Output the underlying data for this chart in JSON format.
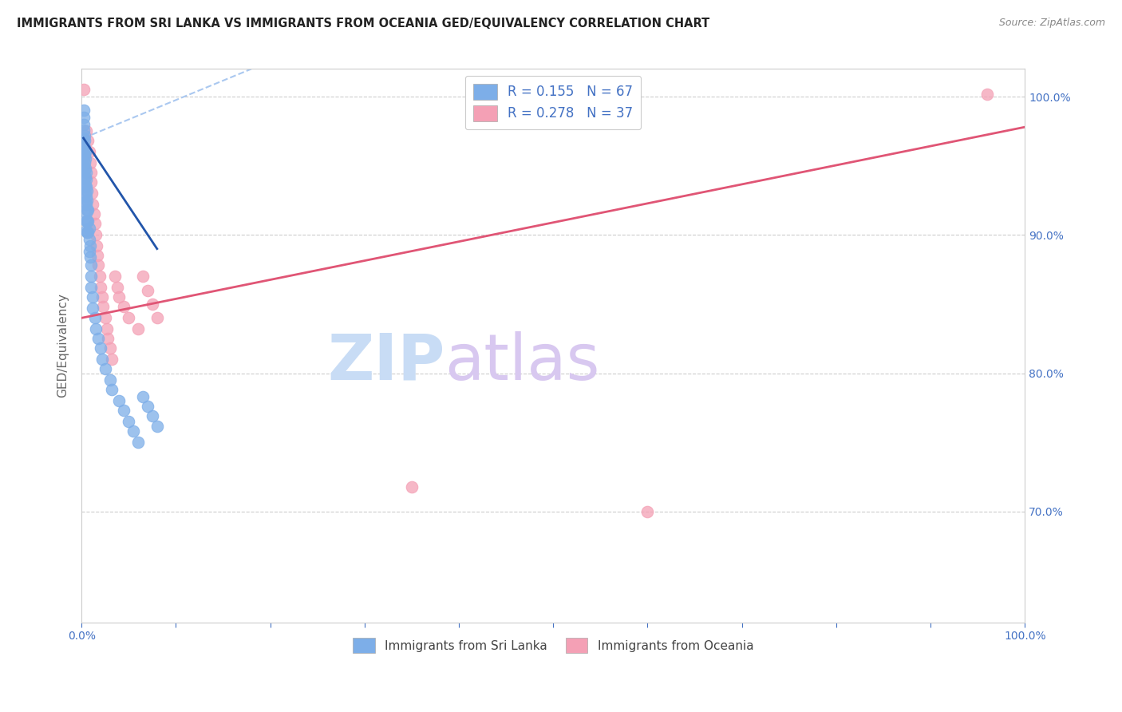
{
  "title": "IMMIGRANTS FROM SRI LANKA VS IMMIGRANTS FROM OCEANIA GED/EQUIVALENCY CORRELATION CHART",
  "source": "Source: ZipAtlas.com",
  "ylabel": "GED/Equivalency",
  "xmin": 0.0,
  "xmax": 1.0,
  "ymin": 0.62,
  "ymax": 1.02,
  "ytick_positions": [
    0.7,
    0.8,
    0.9,
    1.0
  ],
  "ytick_labels": [
    "70.0%",
    "80.0%",
    "90.0%",
    "100.0%"
  ],
  "legend_label1": "R = 0.155   N = 67",
  "legend_label2": "R = 0.278   N = 37",
  "color_blue": "#7daee8",
  "color_pink": "#f4a0b5",
  "trendline_blue_color": "#2255aa",
  "trendline_pink_color": "#e05575",
  "trendline_blue_dashed_color": "#aac8f0",
  "watermark_zip_color": "#c8dcf5",
  "watermark_atlas_color": "#d8c8f0",
  "right_tick_color": "#4472C4",
  "sri_lanka_x": [
    0.002,
    0.002,
    0.002,
    0.002,
    0.002,
    0.002,
    0.002,
    0.002,
    0.002,
    0.003,
    0.003,
    0.003,
    0.003,
    0.003,
    0.003,
    0.003,
    0.003,
    0.004,
    0.004,
    0.004,
    0.004,
    0.004,
    0.004,
    0.004,
    0.005,
    0.005,
    0.005,
    0.005,
    0.005,
    0.005,
    0.005,
    0.005,
    0.006,
    0.006,
    0.006,
    0.006,
    0.006,
    0.007,
    0.007,
    0.007,
    0.008,
    0.008,
    0.008,
    0.009,
    0.009,
    0.01,
    0.01,
    0.01,
    0.012,
    0.012,
    0.014,
    0.015,
    0.018,
    0.02,
    0.022,
    0.025,
    0.03,
    0.032,
    0.04,
    0.045,
    0.05,
    0.055,
    0.06,
    0.065,
    0.07,
    0.075,
    0.08
  ],
  "sri_lanka_y": [
    0.99,
    0.985,
    0.98,
    0.976,
    0.97,
    0.965,
    0.96,
    0.955,
    0.95,
    0.972,
    0.968,
    0.963,
    0.958,
    0.952,
    0.947,
    0.941,
    0.935,
    0.96,
    0.955,
    0.948,
    0.942,
    0.936,
    0.93,
    0.924,
    0.945,
    0.94,
    0.935,
    0.928,
    0.922,
    0.916,
    0.91,
    0.903,
    0.932,
    0.925,
    0.918,
    0.91,
    0.902,
    0.918,
    0.91,
    0.902,
    0.905,
    0.897,
    0.888,
    0.892,
    0.884,
    0.878,
    0.87,
    0.862,
    0.855,
    0.847,
    0.84,
    0.832,
    0.825,
    0.818,
    0.81,
    0.803,
    0.795,
    0.788,
    0.78,
    0.773,
    0.765,
    0.758,
    0.75,
    0.783,
    0.776,
    0.769,
    0.762
  ],
  "oceania_x": [
    0.002,
    0.005,
    0.007,
    0.008,
    0.009,
    0.01,
    0.01,
    0.011,
    0.012,
    0.013,
    0.014,
    0.015,
    0.016,
    0.017,
    0.018,
    0.019,
    0.02,
    0.022,
    0.023,
    0.025,
    0.027,
    0.028,
    0.03,
    0.032,
    0.035,
    0.038,
    0.04,
    0.045,
    0.05,
    0.06,
    0.065,
    0.07,
    0.075,
    0.08,
    0.35,
    0.6,
    0.96
  ],
  "oceania_y": [
    1.005,
    0.975,
    0.968,
    0.96,
    0.952,
    0.945,
    0.938,
    0.93,
    0.922,
    0.915,
    0.908,
    0.9,
    0.892,
    0.885,
    0.878,
    0.87,
    0.862,
    0.855,
    0.848,
    0.84,
    0.832,
    0.825,
    0.818,
    0.81,
    0.87,
    0.862,
    0.855,
    0.848,
    0.84,
    0.832,
    0.87,
    0.86,
    0.85,
    0.84,
    0.718,
    0.7,
    1.002
  ],
  "trendline_pink_x0": 0.0,
  "trendline_pink_y0": 0.84,
  "trendline_pink_x1": 1.0,
  "trendline_pink_y1": 0.978,
  "trendline_blue_solid_x0": 0.002,
  "trendline_blue_solid_y0": 0.97,
  "trendline_blue_solid_x1": 0.08,
  "trendline_blue_solid_y1": 0.89,
  "trendline_blue_dashed_x0": 0.002,
  "trendline_blue_dashed_y0": 0.97,
  "trendline_blue_dashed_x1": 0.18,
  "trendline_blue_dashed_y1": 1.02
}
